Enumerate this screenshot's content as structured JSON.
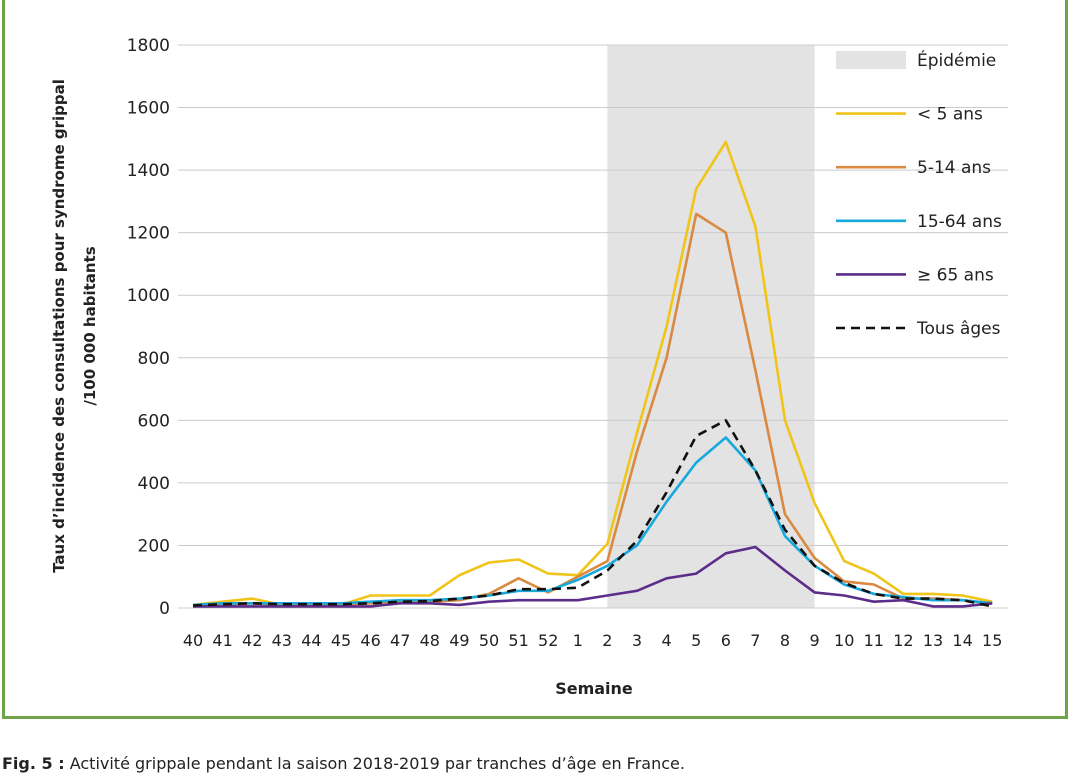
{
  "caption": {
    "label": "Fig. 5 :",
    "text": " Activité grippale pendant la saison 2018-2019 par tranches d’âge en France."
  },
  "chart_data": {
    "type": "line",
    "xlabel": "Semaine",
    "ylabel_line1": "Taux d’incidence des consultations pour syndrome grippal",
    "ylabel_line2": "/100 000 habitants",
    "ylim": [
      0,
      1800
    ],
    "yticks": [
      0,
      200,
      400,
      600,
      800,
      1000,
      1200,
      1400,
      1600,
      1800
    ],
    "grid": "horizontal",
    "legend_position": "top-right",
    "categories": [
      "40",
      "41",
      "42",
      "43",
      "44",
      "45",
      "46",
      "47",
      "48",
      "49",
      "50",
      "51",
      "52",
      "1",
      "2",
      "3",
      "4",
      "5",
      "6",
      "7",
      "8",
      "9",
      "10",
      "11",
      "12",
      "13",
      "14",
      "15"
    ],
    "epidemic": {
      "label": "Épidémie",
      "start": "2",
      "end": "9",
      "color": "#e3e3e3"
    },
    "series": [
      {
        "name": "< 5 ans",
        "color": "#f0c419",
        "dash": "solid",
        "values": [
          10,
          20,
          30,
          10,
          10,
          10,
          40,
          40,
          40,
          105,
          145,
          155,
          110,
          105,
          205,
          560,
          900,
          1340,
          1490,
          1220,
          600,
          335,
          150,
          110,
          45,
          45,
          40,
          20
        ]
      },
      {
        "name": "5-14 ans",
        "color": "#d98a40",
        "dash": "solid",
        "values": [
          5,
          10,
          15,
          10,
          10,
          10,
          15,
          20,
          20,
          25,
          45,
          95,
          50,
          100,
          150,
          500,
          800,
          1260,
          1200,
          760,
          300,
          160,
          85,
          75,
          30,
          30,
          25,
          15
        ]
      },
      {
        "name": "15-64 ans",
        "color": "#17a9dc",
        "dash": "solid",
        "values": [
          10,
          15,
          15,
          15,
          15,
          15,
          20,
          25,
          25,
          30,
          40,
          55,
          55,
          90,
          135,
          200,
          340,
          465,
          545,
          440,
          230,
          135,
          75,
          45,
          35,
          25,
          25,
          15
        ]
      },
      {
        "name": "≥ 65 ans",
        "color": "#5d2d8a",
        "dash": "solid",
        "values": [
          5,
          5,
          5,
          5,
          5,
          5,
          5,
          15,
          15,
          10,
          20,
          25,
          25,
          25,
          40,
          55,
          95,
          110,
          175,
          195,
          120,
          50,
          40,
          20,
          25,
          5,
          5,
          15
        ]
      },
      {
        "name": "Tous âges",
        "color": "#111111",
        "dash": "dashed",
        "values": [
          8,
          12,
          15,
          12,
          12,
          12,
          15,
          20,
          22,
          30,
          40,
          60,
          60,
          65,
          120,
          215,
          370,
          550,
          600,
          440,
          250,
          135,
          80,
          45,
          30,
          30,
          25,
          5
        ]
      }
    ]
  }
}
